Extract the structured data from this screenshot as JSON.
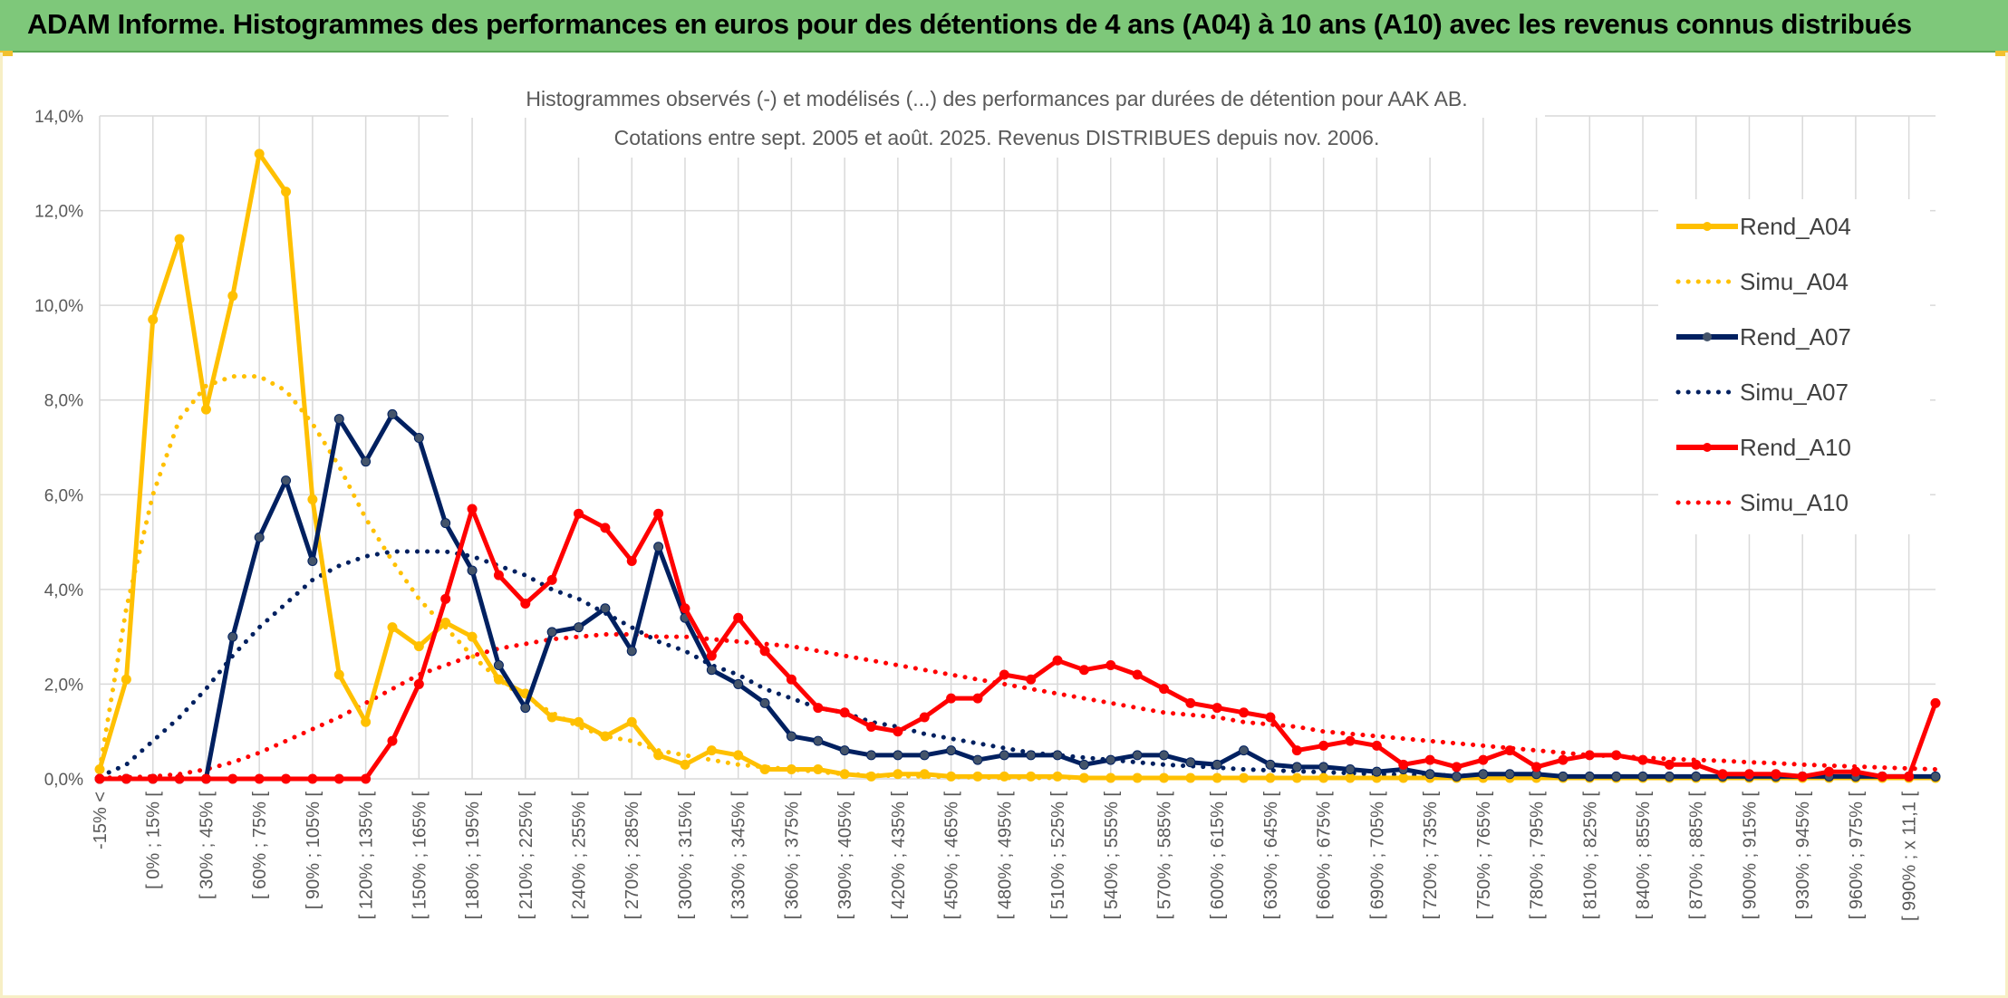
{
  "banner": {
    "title": "ADAM Informe. Histogrammes des performances en euros pour des détentions de 4 ans (A04) à 10 ans (A10) avec les revenus connus distribués"
  },
  "colors": {
    "banner_bg": "#7ec87a",
    "A04": "#ffc000",
    "A07": "#002060",
    "A10": "#ff0000",
    "grid": "#d9d9d9"
  },
  "chart_data": {
    "type": "line",
    "title": "Histogrammes observés (-) et modélisés (...) des performances par durées de détention pour AAK AB.",
    "subtitle": "Cotations entre sept. 2005 et août. 2025. Revenus DISTRIBUES depuis nov. 2006.",
    "ylim": [
      0,
      14
    ],
    "yticks": [
      0,
      2,
      4,
      6,
      8,
      10,
      12,
      14
    ],
    "ytick_labels": [
      "0,0%",
      "2,0%",
      "4,0%",
      "6,0%",
      "8,0%",
      "10,0%",
      "12,0%",
      "14,0%"
    ],
    "grid": true,
    "legend_position": "top-right",
    "x_labels": [
      "-15% <",
      "[ 0% ; 15% [",
      "[ 30% ; 45% [",
      "[ 60% ; 75% [",
      "[ 90% ; 105% [",
      "[ 120% ; 135% [",
      "[ 150% ; 165% [",
      "[ 180% ; 195% [",
      "[ 210% ; 225% [",
      "[ 240% ; 255% [",
      "[ 270% ; 285% [",
      "[ 300% ; 315% [",
      "[ 330% ; 345% [",
      "[ 360% ; 375% [",
      "[ 390% ; 405% [",
      "[ 420% ; 435% [",
      "[ 450% ; 465% [",
      "[ 480% ; 495% [",
      "[ 510% ; 525% [",
      "[ 540% ; 555% [",
      "[ 570% ; 585% [",
      "[ 600% ; 615% [",
      "[ 630% ; 645% [",
      "[ 660% ; 675% [",
      "[ 690% ; 705% [",
      "[ 720% ; 735% [",
      "[ 750% ; 765% [",
      "[ 780% ; 795% [",
      "[ 810% ; 825% [",
      "[ 840% ; 855% [",
      "[ 870% ; 885% [",
      "[ 900% ; 915% [",
      "[ 930% ; 945% [",
      "[ 960% ; 975% [",
      "[ 990% ; x 11,1 ["
    ],
    "series": [
      {
        "name": "Rend_A04",
        "style": "solid",
        "color": "#ffc000",
        "values": [
          0.2,
          2.1,
          9.7,
          11.4,
          7.8,
          10.2,
          13.2,
          12.4,
          5.9,
          2.2,
          1.2,
          3.2,
          2.8,
          3.3,
          3.0,
          2.1,
          1.8,
          1.3,
          1.2,
          0.9,
          1.2,
          0.5,
          0.3,
          0.6,
          0.5,
          0.2,
          0.2,
          0.2,
          0.1,
          0.05,
          0.1,
          0.1,
          0.05,
          0.05,
          0.05,
          0.05,
          0.05,
          0.02,
          0.02,
          0.02,
          0.02,
          0.02,
          0.02,
          0.02,
          0.02,
          0.02,
          0.02,
          0.02,
          0.02,
          0.02,
          0.02,
          0.02,
          0.02,
          0.02,
          0.02,
          0.02,
          0.02,
          0.02,
          0.02,
          0.02,
          0.02,
          0.02,
          0.02,
          0.02,
          0.02,
          0.02,
          0.02,
          0.02,
          0.02,
          0.02
        ]
      },
      {
        "name": "Simu_A04",
        "style": "dotted",
        "color": "#ffc000",
        "values": [
          0.2,
          3.6,
          6.0,
          7.6,
          8.3,
          8.5,
          8.5,
          8.2,
          7.5,
          6.6,
          5.5,
          4.6,
          3.8,
          3.2,
          2.6,
          2.1,
          1.7,
          1.4,
          1.1,
          0.9,
          0.8,
          0.6,
          0.5,
          0.4,
          0.3,
          0.25,
          0.2,
          0.15,
          0.1,
          0.08,
          0.06,
          0.05,
          0.04,
          0.03,
          0.02,
          0.02,
          0.02,
          0.02,
          0.02,
          0.02,
          0.02,
          0.02,
          0.02,
          0.02,
          0.02,
          0.02,
          0.02,
          0.02,
          0.02,
          0.02,
          0.02,
          0.02,
          0.02,
          0.02,
          0.02,
          0.02,
          0.02,
          0.02,
          0.02,
          0.02,
          0.02,
          0.02,
          0.02,
          0.02,
          0.02,
          0.02,
          0.02,
          0.02,
          0.02,
          0.02
        ]
      },
      {
        "name": "Rend_A07",
        "style": "solid",
        "color": "#002060",
        "values": [
          0,
          0,
          0,
          0,
          0,
          3.0,
          5.1,
          6.3,
          4.6,
          7.6,
          6.7,
          7.7,
          7.2,
          5.4,
          4.4,
          2.4,
          1.5,
          3.1,
          3.2,
          3.6,
          2.7,
          4.9,
          3.4,
          2.3,
          2.0,
          1.6,
          0.9,
          0.8,
          0.6,
          0.5,
          0.5,
          0.5,
          0.6,
          0.4,
          0.5,
          0.5,
          0.5,
          0.3,
          0.4,
          0.5,
          0.5,
          0.35,
          0.3,
          0.6,
          0.3,
          0.25,
          0.25,
          0.2,
          0.15,
          0.2,
          0.1,
          0.05,
          0.1,
          0.1,
          0.1,
          0.05,
          0.05,
          0.05,
          0.05,
          0.05,
          0.05,
          0.05,
          0.05,
          0.05,
          0.05,
          0.05,
          0.05,
          0.05,
          0.05,
          0.05
        ]
      },
      {
        "name": "Simu_A07",
        "style": "dotted",
        "color": "#002060",
        "values": [
          0.05,
          0.3,
          0.8,
          1.3,
          1.9,
          2.6,
          3.2,
          3.7,
          4.2,
          4.5,
          4.7,
          4.8,
          4.8,
          4.8,
          4.7,
          4.5,
          4.3,
          4.0,
          3.8,
          3.5,
          3.2,
          2.9,
          2.7,
          2.4,
          2.2,
          1.9,
          1.7,
          1.5,
          1.4,
          1.2,
          1.1,
          0.95,
          0.85,
          0.75,
          0.65,
          0.55,
          0.5,
          0.45,
          0.4,
          0.35,
          0.3,
          0.27,
          0.24,
          0.2,
          0.18,
          0.16,
          0.14,
          0.12,
          0.1,
          0.09,
          0.08,
          0.07,
          0.06,
          0.05,
          0.05,
          0.04,
          0.04,
          0.03,
          0.03,
          0.03,
          0.02,
          0.02,
          0.02,
          0.02,
          0.02,
          0.02,
          0.02,
          0.02,
          0.02,
          0.02
        ]
      },
      {
        "name": "Rend_A10",
        "style": "solid",
        "color": "#ff0000",
        "values": [
          0,
          0,
          0,
          0,
          0,
          0,
          0,
          0,
          0,
          0,
          0,
          0.8,
          2.0,
          3.8,
          5.7,
          4.3,
          3.7,
          4.2,
          5.6,
          5.3,
          4.6,
          5.6,
          3.6,
          2.6,
          3.4,
          2.7,
          2.1,
          1.5,
          1.4,
          1.1,
          1.0,
          1.3,
          1.7,
          1.7,
          2.2,
          2.1,
          2.5,
          2.3,
          2.4,
          2.2,
          1.9,
          1.6,
          1.5,
          1.4,
          1.3,
          0.6,
          0.7,
          0.8,
          0.7,
          0.3,
          0.4,
          0.25,
          0.4,
          0.6,
          0.25,
          0.4,
          0.5,
          0.5,
          0.4,
          0.3,
          0.3,
          0.1,
          0.1,
          0.1,
          0.05,
          0.15,
          0.15,
          0.05,
          0.05,
          1.6
        ]
      },
      {
        "name": "Simu_A10",
        "style": "dotted",
        "color": "#ff0000",
        "values": [
          0.02,
          0.03,
          0.05,
          0.1,
          0.2,
          0.35,
          0.55,
          0.8,
          1.05,
          1.3,
          1.6,
          1.9,
          2.2,
          2.4,
          2.6,
          2.75,
          2.85,
          2.95,
          3.0,
          3.05,
          3.05,
          3.0,
          3.0,
          2.95,
          2.9,
          2.85,
          2.8,
          2.7,
          2.6,
          2.5,
          2.4,
          2.3,
          2.2,
          2.1,
          2.0,
          1.9,
          1.8,
          1.7,
          1.6,
          1.5,
          1.4,
          1.35,
          1.3,
          1.2,
          1.15,
          1.1,
          1.0,
          0.95,
          0.9,
          0.85,
          0.8,
          0.75,
          0.7,
          0.65,
          0.6,
          0.55,
          0.5,
          0.48,
          0.45,
          0.42,
          0.4,
          0.38,
          0.35,
          0.33,
          0.3,
          0.28,
          0.26,
          0.24,
          0.22,
          0.2
        ]
      }
    ]
  }
}
